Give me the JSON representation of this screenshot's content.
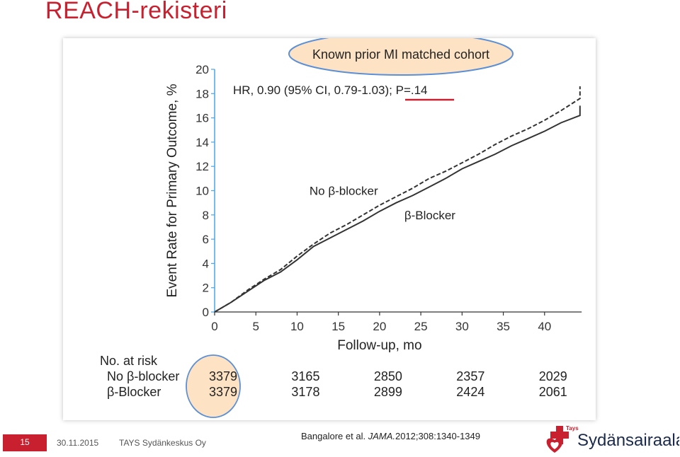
{
  "slide": {
    "title": "REACH-rekisteri",
    "page_number": "15",
    "date": "30.11.2015",
    "organization": "TAYS Sydänkeskus Oy",
    "citation_prefix": "Bangalore et al. ",
    "citation_journal": "JAMA.",
    "citation_rest": "2012;308:1340-1349",
    "logo_small": "Tays",
    "logo_text": "Sydänsairaala",
    "colors": {
      "accent": "#c8202f",
      "highlight_fill": "#fde3c4",
      "highlight_border": "#5b8fd6"
    }
  },
  "chart_data": {
    "type": "line",
    "title": "Known prior MI matched cohort",
    "annotation": "HR, 0.90 (95% CI, 0.79-1.03); P=.14",
    "ylabel": "Event Rate for Primary Outcome, %",
    "xlabel": "Follow-up, mo",
    "xlim": [
      0,
      45
    ],
    "ylim": [
      0,
      20
    ],
    "x_ticks": [
      0,
      5,
      10,
      15,
      20,
      25,
      30,
      35,
      40
    ],
    "y_ticks": [
      0,
      2,
      4,
      6,
      8,
      10,
      12,
      14,
      16,
      18,
      20
    ],
    "grid": false,
    "series": [
      {
        "name": "No β-blocker",
        "style": "dashed",
        "x": [
          0,
          2,
          4,
          6,
          8,
          10,
          12,
          14,
          16,
          18,
          20,
          22,
          24,
          26,
          28,
          30,
          32,
          34,
          36,
          38,
          40,
          42,
          44.3,
          44.3
        ],
        "y": [
          0,
          0.8,
          1.8,
          2.7,
          3.5,
          4.6,
          5.6,
          6.5,
          7.2,
          8.0,
          8.8,
          9.5,
          10.2,
          11.0,
          11.6,
          12.3,
          13.0,
          13.8,
          14.5,
          15.1,
          15.8,
          16.6,
          17.6,
          18.6
        ]
      },
      {
        "name": "β-Blocker",
        "style": "solid",
        "x": [
          0,
          2,
          4,
          6,
          8,
          10,
          12,
          14,
          16,
          18,
          20,
          22,
          24,
          26,
          28,
          30,
          32,
          34,
          36,
          38,
          40,
          42,
          44.3,
          44.3
        ],
        "y": [
          0,
          0.8,
          1.7,
          2.6,
          3.3,
          4.3,
          5.4,
          6.1,
          6.8,
          7.5,
          8.3,
          9.0,
          9.6,
          10.3,
          11.0,
          11.8,
          12.4,
          13.0,
          13.7,
          14.3,
          14.9,
          15.6,
          16.2,
          17.0
        ]
      }
    ],
    "risk_table": {
      "title": "No. at risk",
      "rows": [
        {
          "label": "No β-blocker",
          "values": [
            "3379",
            "3165",
            "2850",
            "2357",
            "2029"
          ]
        },
        {
          "label": "β-Blocker",
          "values": [
            "3379",
            "3178",
            "2899",
            "2424",
            "2061"
          ]
        }
      ]
    }
  }
}
